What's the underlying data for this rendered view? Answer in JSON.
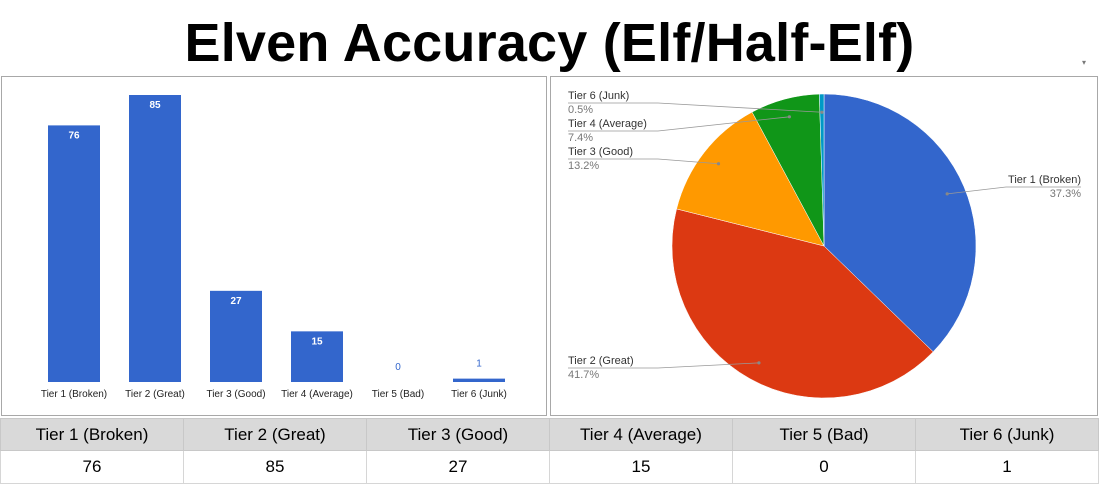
{
  "title": "Elven Accuracy (Elf/Half-Elf)",
  "scroll_caret": "▾",
  "colors": {
    "blue": "#3366cc",
    "red": "#dc3912",
    "orange": "#ff9900",
    "green": "#109618",
    "teal": "#0099c6"
  },
  "chart_data": [
    {
      "type": "bar",
      "categories": [
        "Tier 1 (Broken)",
        "Tier 2 (Great)",
        "Tier 3 (Good)",
        "Tier 4 (Average)",
        "Tier 5 (Bad)",
        "Tier 6 (Junk)"
      ],
      "values": [
        76,
        85,
        27,
        15,
        0,
        1
      ],
      "data_labels": [
        "76",
        "85",
        "27",
        "15",
        "0",
        "1"
      ],
      "ylim": [
        0,
        85
      ],
      "grid": false,
      "legend": "none"
    },
    {
      "type": "pie",
      "categories": [
        "Tier 1 (Broken)",
        "Tier 2 (Great)",
        "Tier 3 (Good)",
        "Tier 4 (Average)",
        "Tier 5 (Bad)",
        "Tier 6 (Junk)"
      ],
      "values": [
        76,
        85,
        27,
        15,
        0,
        1
      ],
      "percent_labels": [
        "37.3%",
        "41.7%",
        "13.2%",
        "7.4%",
        "",
        "0.5%"
      ],
      "colors": [
        "#3366cc",
        "#dc3912",
        "#ff9900",
        "#109618",
        "#990099",
        "#0099c6"
      ],
      "legend": "labeled"
    }
  ],
  "table": {
    "headers": [
      "Tier 1 (Broken)",
      "Tier 2 (Great)",
      "Tier 3 (Good)",
      "Tier 4 (Average)",
      "Tier 5 (Bad)",
      "Tier 6 (Junk)"
    ],
    "values": [
      "76",
      "85",
      "27",
      "15",
      "0",
      "1"
    ]
  }
}
